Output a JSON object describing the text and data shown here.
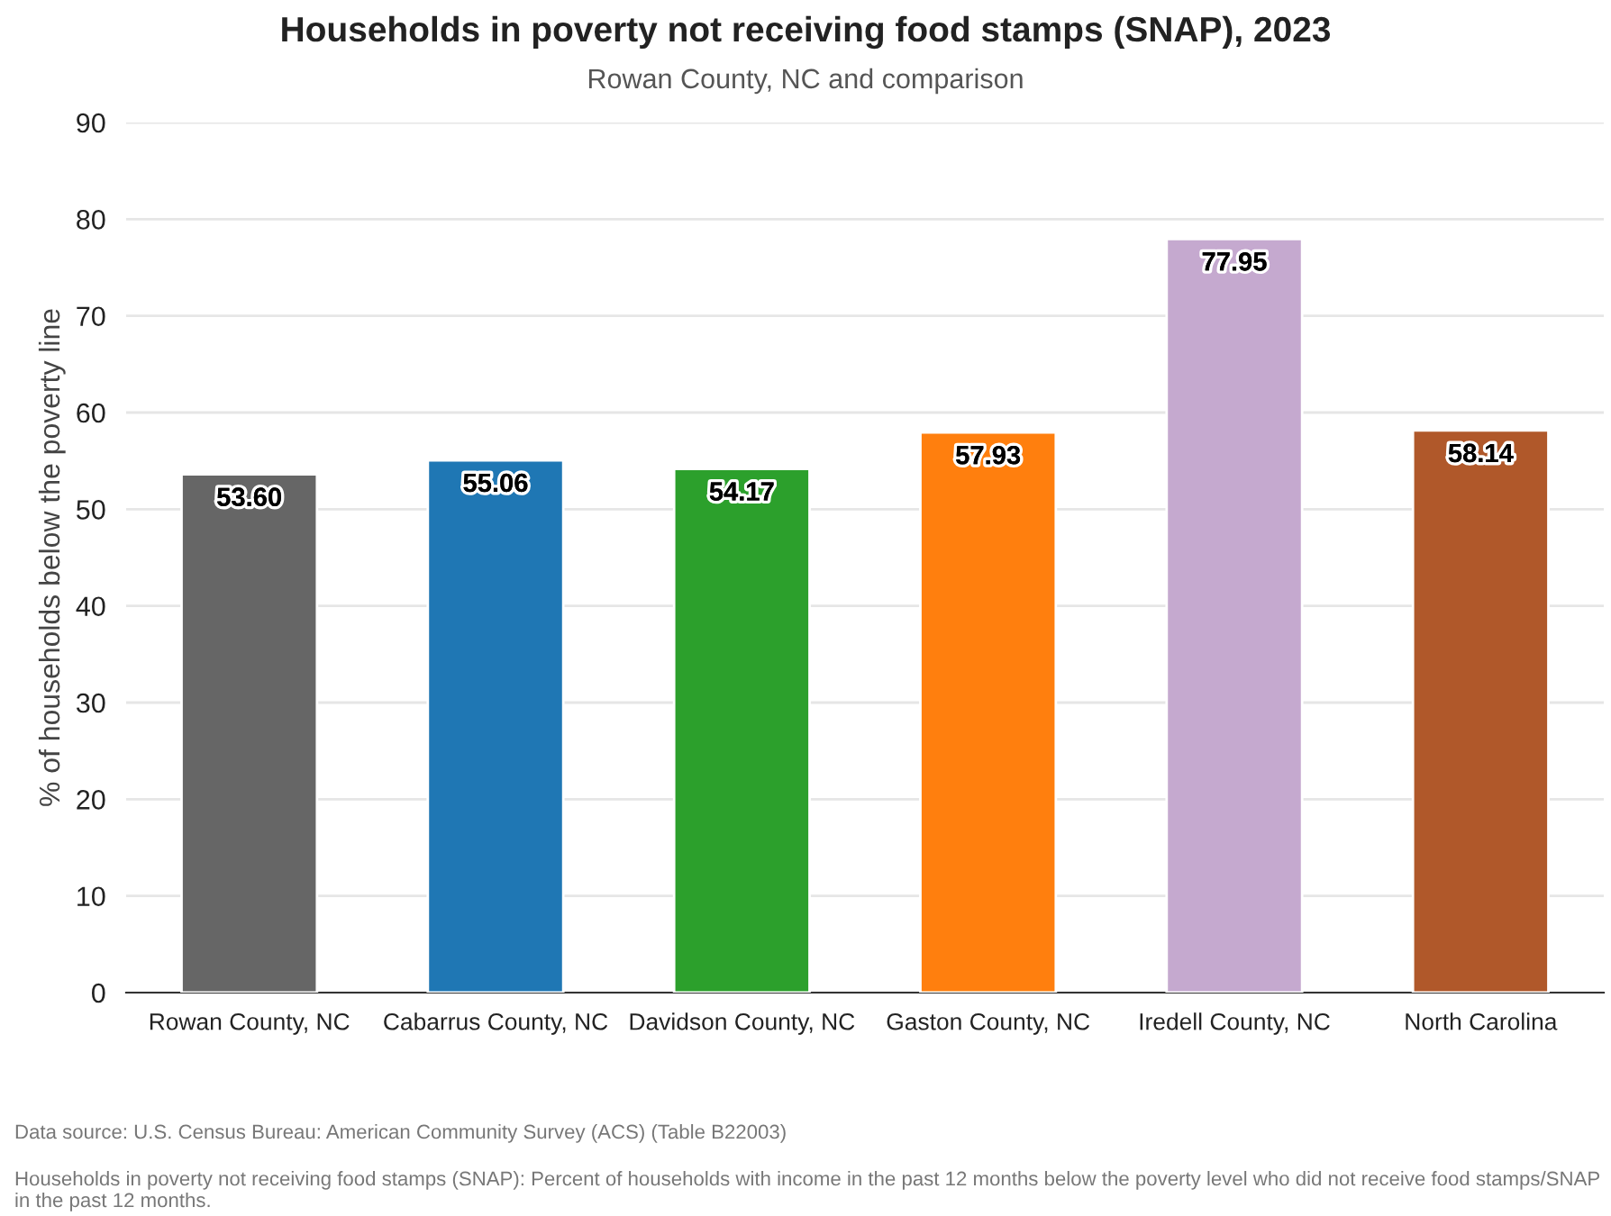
{
  "chart_data": {
    "type": "bar",
    "title": "Households in poverty not receiving food stamps (SNAP), 2023",
    "subtitle": "Rowan County, NC and comparison",
    "ylabel": "% of households below the poverty line",
    "categories": [
      "Rowan County, NC",
      "Cabarrus County, NC",
      "Davidson County, NC",
      "Gaston County, NC",
      "Iredell County, NC",
      "North Carolina"
    ],
    "values": [
      53.6,
      55.06,
      54.17,
      57.93,
      77.95,
      58.14
    ],
    "value_labels": [
      "53.60",
      "55.06",
      "54.17",
      "57.93",
      "77.95",
      "58.14"
    ],
    "colors": [
      "#666666",
      "#1f77b4",
      "#2ca02c",
      "#ff7f0e",
      "#c5a9cf",
      "#b0582a"
    ],
    "ylim": [
      0,
      90
    ],
    "yticks": [
      0,
      10,
      20,
      30,
      40,
      50,
      60,
      70,
      80,
      90
    ],
    "grid": "y",
    "annotations": [
      "Data source: U.S. Census Bureau: American Community Survey (ACS) (Table B22003)",
      "Households in poverty not receiving food stamps (SNAP): Percent of households with income in the past 12 months below the poverty level who did not receive food stamps/SNAP in the past 12 months."
    ]
  }
}
